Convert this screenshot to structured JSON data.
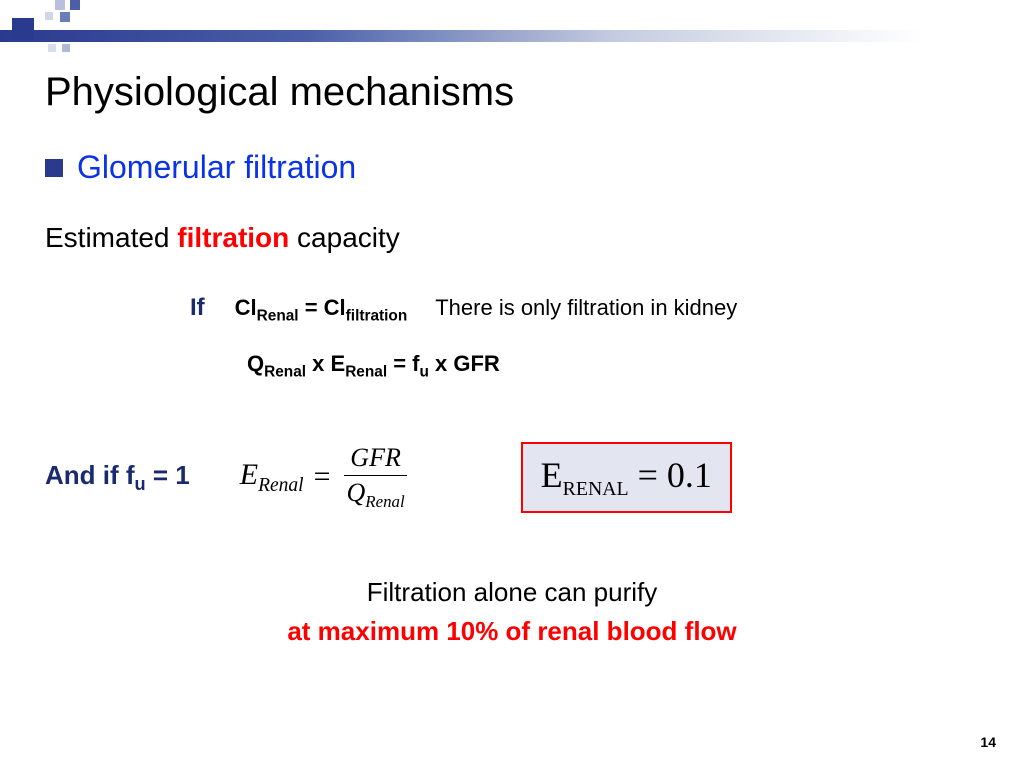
{
  "colors": {
    "brand_dark": "#2a3a8f",
    "title_blue": "#0a33e6",
    "label_navy": "#1a2a6e",
    "red": "#ff0000",
    "box_bg": "#e3e5f0",
    "box_border": "#ff0000",
    "background": "#ffffff"
  },
  "typography": {
    "title_fontsize": 40,
    "subtitle_fontsize": 32,
    "body_fontsize": 26,
    "equation_fontsize": 22,
    "boxed_fontsize": 36
  },
  "title": "Physiological mechanisms",
  "subtitle": "Glomerular filtration",
  "estimated": {
    "pre": "Estimated ",
    "highlight": "filtration",
    "post": " capacity"
  },
  "if_block": {
    "label": "If",
    "eq_lhs": "Cl",
    "eq_lhs_sub": "Renal",
    "eq_op": " = ",
    "eq_rhs": "Cl",
    "eq_rhs_sub": "filtration",
    "explain": "There is only filtration in kidney"
  },
  "q_equation": {
    "t1": "Q",
    "s1": "Renal",
    "t2": "  x E",
    "s2": "Renal",
    "t3": " = f",
    "s3": "u",
    "t4": " x GFR"
  },
  "andif": {
    "pre": "And if f",
    "sub": "u",
    "post": " = 1"
  },
  "fraction_eq": {
    "lhs": "E",
    "lhs_sub": "Renal",
    "eq": " = ",
    "num": "GFR",
    "den": "Q",
    "den_sub": "Renal"
  },
  "boxed": {
    "lhs": "E",
    "lhs_sub": "RENAL",
    "rhs": " = 0.1",
    "value": 0.1
  },
  "conclusion": {
    "line1": "Filtration alone can purify",
    "line2": "at maximum 10% of renal blood flow"
  },
  "page_number": "14"
}
